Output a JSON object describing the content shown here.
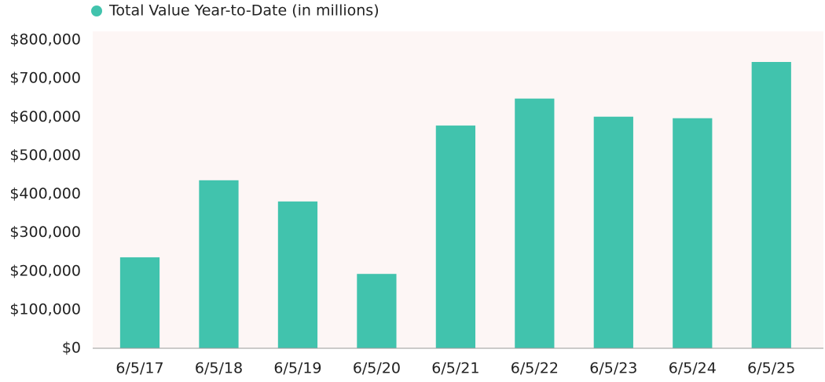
{
  "chart_data": {
    "type": "bar",
    "categories": [
      "6/5/17",
      "6/5/18",
      "6/5/19",
      "6/5/20",
      "6/5/21",
      "6/5/22",
      "6/5/23",
      "6/5/24",
      "6/5/25"
    ],
    "series": [
      {
        "name": "Total Value Year-to-Date (in millions)",
        "color": "#41c3ad",
        "values": [
          236000,
          436000,
          381000,
          193000,
          578000,
          648000,
          601000,
          597000,
          743000
        ]
      }
    ],
    "ylim": [
      0,
      800000
    ],
    "yticks": [
      {
        "value": 0,
        "label": "$0"
      },
      {
        "value": 100000,
        "label": "$100,000"
      },
      {
        "value": 200000,
        "label": "$200,000"
      },
      {
        "value": 300000,
        "label": "$300,000"
      },
      {
        "value": 400000,
        "label": "$400,000"
      },
      {
        "value": 500000,
        "label": "$500,000"
      },
      {
        "value": 600000,
        "label": "$600,000"
      },
      {
        "value": 700000,
        "label": "$700,000"
      },
      {
        "value": 800000,
        "label": "$800,000"
      }
    ],
    "grid": false,
    "legend": "top-left"
  }
}
